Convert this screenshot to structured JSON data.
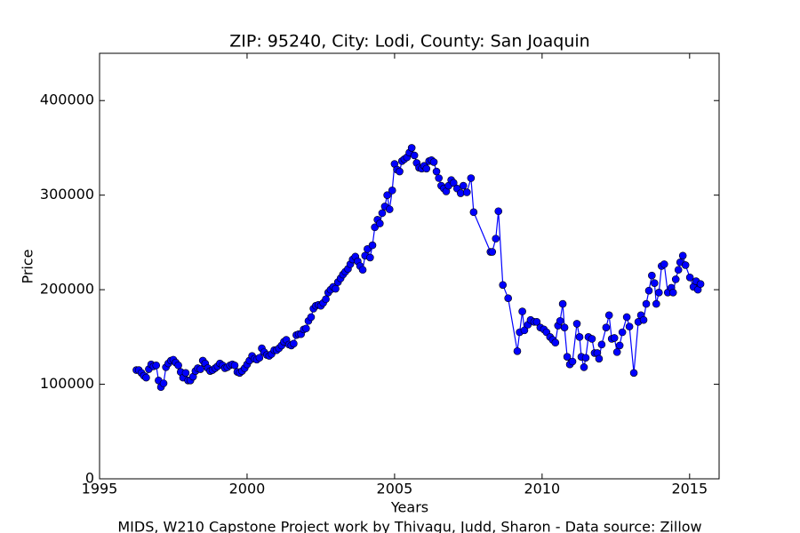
{
  "chart_data": {
    "type": "line",
    "title": "ZIP: 95240, City: Lodi, County: San Joaquin",
    "xlabel": "Years",
    "ylabel": "Price",
    "footer": "MIDS, W210 Capstone Project work by Thivagu, Judd, Sharon  -  Data source: Zillow",
    "xlim": [
      1995,
      2016
    ],
    "xticks": [
      1995,
      2000,
      2005,
      2010,
      2015
    ],
    "ylim": [
      0,
      450000
    ],
    "yticks": [
      0,
      100000,
      200000,
      300000,
      400000
    ],
    "grid": false,
    "color": "#0000ff",
    "x": [
      1996.25,
      1996.33,
      1996.42,
      1996.5,
      1996.58,
      1996.67,
      1996.75,
      1996.83,
      1996.92,
      1997.0,
      1997.08,
      1997.17,
      1997.25,
      1997.33,
      1997.42,
      1997.5,
      1997.58,
      1997.67,
      1997.75,
      1997.83,
      1997.92,
      1998.0,
      1998.08,
      1998.17,
      1998.25,
      1998.33,
      1998.42,
      1998.5,
      1998.58,
      1998.67,
      1998.75,
      1998.83,
      1998.92,
      1999.0,
      1999.08,
      1999.17,
      1999.25,
      1999.33,
      1999.42,
      1999.5,
      1999.58,
      1999.67,
      1999.75,
      1999.83,
      1999.92,
      2000.0,
      2000.08,
      2000.17,
      2000.25,
      2000.33,
      2000.42,
      2000.5,
      2000.58,
      2000.67,
      2000.75,
      2000.83,
      2000.92,
      2001.0,
      2001.08,
      2001.17,
      2001.25,
      2001.33,
      2001.42,
      2001.5,
      2001.58,
      2001.67,
      2001.75,
      2001.83,
      2001.92,
      2002.0,
      2002.08,
      2002.17,
      2002.25,
      2002.33,
      2002.42,
      2002.5,
      2002.58,
      2002.67,
      2002.75,
      2002.83,
      2002.92,
      2003.0,
      2003.08,
      2003.17,
      2003.25,
      2003.33,
      2003.42,
      2003.5,
      2003.58,
      2003.67,
      2003.75,
      2003.83,
      2003.92,
      2004.0,
      2004.08,
      2004.17,
      2004.25,
      2004.33,
      2004.42,
      2004.5,
      2004.58,
      2004.67,
      2004.75,
      2004.83,
      2004.92,
      2005.0,
      2005.08,
      2005.17,
      2005.25,
      2005.33,
      2005.42,
      2005.5,
      2005.58,
      2005.67,
      2005.75,
      2005.83,
      2005.92,
      2006.0,
      2006.08,
      2006.17,
      2006.25,
      2006.33,
      2006.42,
      2006.5,
      2006.58,
      2006.67,
      2006.75,
      2006.83,
      2006.92,
      2007.0,
      2007.12,
      2007.24,
      2007.33,
      2007.45,
      2007.59,
      2007.68,
      2008.25,
      2008.31,
      2008.43,
      2008.52,
      2008.67,
      2008.85,
      2009.16,
      2009.24,
      2009.33,
      2009.4,
      2009.52,
      2009.61,
      2009.73,
      2009.82,
      2009.94,
      2010.06,
      2010.15,
      2010.27,
      2010.36,
      2010.45,
      2010.54,
      2010.61,
      2010.7,
      2010.76,
      2010.85,
      2010.94,
      2011.03,
      2011.18,
      2011.27,
      2011.33,
      2011.42,
      2011.48,
      2011.57,
      2011.69,
      2011.78,
      2011.87,
      2011.93,
      2012.02,
      2012.17,
      2012.27,
      2012.36,
      2012.45,
      2012.54,
      2012.63,
      2012.72,
      2012.87,
      2012.96,
      2013.11,
      2013.26,
      2013.35,
      2013.44,
      2013.53,
      2013.62,
      2013.72,
      2013.81,
      2013.87,
      2013.96,
      2014.05,
      2014.14,
      2014.26,
      2014.38,
      2014.44,
      2014.53,
      2014.62,
      2014.68,
      2014.77,
      2014.86,
      2015.01,
      2015.13,
      2015.22,
      2015.28,
      2015.37
    ],
    "values": [
      115000,
      115000,
      112000,
      109000,
      107000,
      116000,
      121000,
      119000,
      120000,
      104000,
      97000,
      101000,
      118000,
      122000,
      125000,
      126000,
      123000,
      120000,
      113000,
      107000,
      112000,
      104000,
      104000,
      108000,
      114000,
      117000,
      116000,
      125000,
      122000,
      117000,
      114000,
      115000,
      117000,
      119000,
      122000,
      120000,
      117000,
      118000,
      120000,
      121000,
      120000,
      113000,
      112000,
      114000,
      117000,
      121000,
      125000,
      130000,
      127000,
      126000,
      128000,
      138000,
      134000,
      131000,
      130000,
      132000,
      136000,
      136000,
      138000,
      141000,
      145000,
      147000,
      142000,
      141000,
      143000,
      152000,
      153000,
      153000,
      158000,
      159000,
      167000,
      171000,
      180000,
      183000,
      184000,
      183000,
      186000,
      190000,
      197000,
      200000,
      203000,
      201000,
      208000,
      212000,
      216000,
      219000,
      222000,
      227000,
      232000,
      235000,
      230000,
      225000,
      221000,
      236000,
      243000,
      234000,
      247000,
      266000,
      274000,
      270000,
      281000,
      288000,
      300000,
      285000,
      305000,
      333000,
      327000,
      325000,
      336000,
      338000,
      340000,
      345000,
      350000,
      342000,
      334000,
      329000,
      328000,
      331000,
      328000,
      336000,
      337000,
      335000,
      325000,
      318000,
      310000,
      307000,
      304000,
      310000,
      316000,
      313000,
      307000,
      302000,
      310000,
      303000,
      318000,
      282000,
      240000,
      240000,
      254000,
      283000,
      205000,
      191000,
      135000,
      155000,
      177000,
      157000,
      163000,
      168000,
      166000,
      166000,
      160000,
      158000,
      155000,
      150000,
      147000,
      144000,
      162000,
      167000,
      185000,
      160000,
      129000,
      121000,
      124000,
      164000,
      150000,
      129000,
      118000,
      128000,
      150000,
      148000,
      133000,
      133000,
      127000,
      142000,
      160000,
      173000,
      148000,
      149000,
      134000,
      141000,
      155000,
      171000,
      161000,
      112000,
      166000,
      173000,
      168000,
      185000,
      199000,
      215000,
      207000,
      185000,
      197000,
      225000,
      227000,
      197000,
      202000,
      197000,
      211000,
      221000,
      229000,
      236000,
      226000,
      213000,
      203000,
      209000,
      200000,
      206000
    ]
  }
}
